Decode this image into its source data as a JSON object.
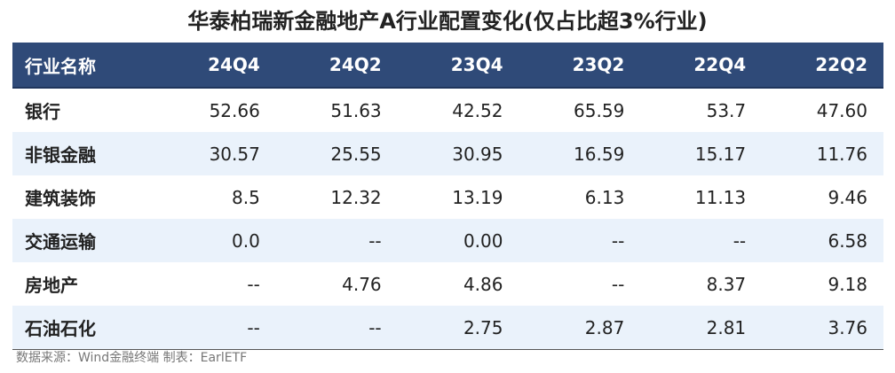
{
  "title": "华泰柏瑞新金融地产A行业配置变化(仅占比超3%行业)",
  "source": "数据来源：Wind金融终端 制表：EarlETF",
  "chart_data": {
    "type": "table",
    "columns": [
      "行业名称",
      "24Q4",
      "24Q2",
      "23Q4",
      "23Q2",
      "22Q4",
      "22Q2"
    ],
    "rows": [
      [
        "银行",
        "52.66",
        "51.63",
        "42.52",
        "65.59",
        "53.7",
        "47.60"
      ],
      [
        "非银金融",
        "30.57",
        "25.55",
        "30.95",
        "16.59",
        "15.17",
        "11.76"
      ],
      [
        "建筑装饰",
        "8.5",
        "12.32",
        "13.19",
        "6.13",
        "11.13",
        "9.46"
      ],
      [
        "交通运输",
        "0.0",
        "--",
        "0.00",
        "--",
        "--",
        "6.58"
      ],
      [
        "房地产",
        "--",
        "4.76",
        "4.86",
        "--",
        "8.37",
        "9.18"
      ],
      [
        "石油石化",
        "--",
        "--",
        "2.75",
        "2.87",
        "2.81",
        "3.76"
      ]
    ]
  },
  "colors": {
    "header_bg": "#2f4a78",
    "row_alt_bg": "#eaf2fb"
  }
}
